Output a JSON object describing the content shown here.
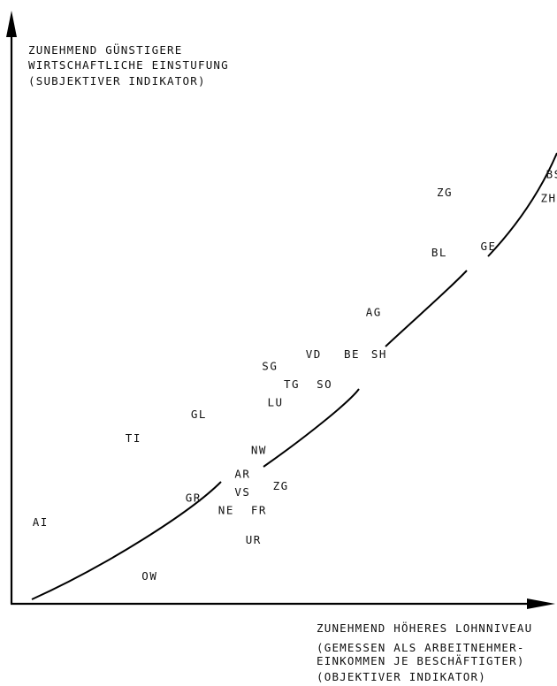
{
  "y_axis_label": [
    "ZUNEHMEND GÜNSTIGERE",
    "WIRTSCHAFTLICHE EINSTUFUNG",
    "(SUBJEKTIVER INDIKATOR)"
  ],
  "x_axis_label": [
    "ZUNEHMEND HÖHERES LOHNNIVEAU",
    "(GEMESSEN ALS ARBEITNEHMER-",
    "EINKOMMEN JE BESCHÄFTIGTER)",
    "(OBJEKTIVER INDIKATOR)"
  ],
  "chart_data": {
    "type": "scatter",
    "xlabel": "ZUNEHMEND HÖHERES LOHNNIVEAU (GEMESSEN ALS ARBEITNEHMER-EINKOMMEN JE BESCHÄFTIGTER) (OBJEKTIVER INDIKATOR)",
    "ylabel": "ZUNEHMEND GÜNSTIGERE WIRTSCHAFTLICHE EINSTUFUNG (SUBJEKTIVER INDIKATOR)",
    "axis_ticks": false,
    "grid": false,
    "legend": "none",
    "trend_curve": "convex-increasing",
    "points": [
      {
        "label": "AI",
        "x": 4,
        "y": 13
      },
      {
        "label": "OW",
        "x": 24,
        "y": 4
      },
      {
        "label": "TI",
        "x": 21,
        "y": 27
      },
      {
        "label": "GL",
        "x": 33,
        "y": 31
      },
      {
        "label": "GR",
        "x": 32,
        "y": 17
      },
      {
        "label": "NE",
        "x": 38,
        "y": 15
      },
      {
        "label": "VS",
        "x": 41,
        "y": 18
      },
      {
        "label": "AR",
        "x": 41,
        "y": 21
      },
      {
        "label": "NW",
        "x": 44,
        "y": 25
      },
      {
        "label": "ZG",
        "x": 48,
        "y": 19
      },
      {
        "label": "FR",
        "x": 44,
        "y": 15
      },
      {
        "label": "UR",
        "x": 43,
        "y": 10
      },
      {
        "label": "LU",
        "x": 47,
        "y": 33
      },
      {
        "label": "TG",
        "x": 50,
        "y": 36
      },
      {
        "label": "SG",
        "x": 46,
        "y": 39
      },
      {
        "label": "VD",
        "x": 54,
        "y": 41
      },
      {
        "label": "SO",
        "x": 56,
        "y": 36
      },
      {
        "label": "BE",
        "x": 61,
        "y": 41
      },
      {
        "label": "SH",
        "x": 66,
        "y": 41
      },
      {
        "label": "AG",
        "x": 65,
        "y": 48
      },
      {
        "label": "BL",
        "x": 77,
        "y": 58
      },
      {
        "label": "GE",
        "x": 86,
        "y": 59
      },
      {
        "label": "ZG",
        "x": 78,
        "y": 68
      },
      {
        "label": "BS",
        "x": 98,
        "y": 71
      },
      {
        "label": "ZH",
        "x": 97,
        "y": 67
      }
    ]
  }
}
